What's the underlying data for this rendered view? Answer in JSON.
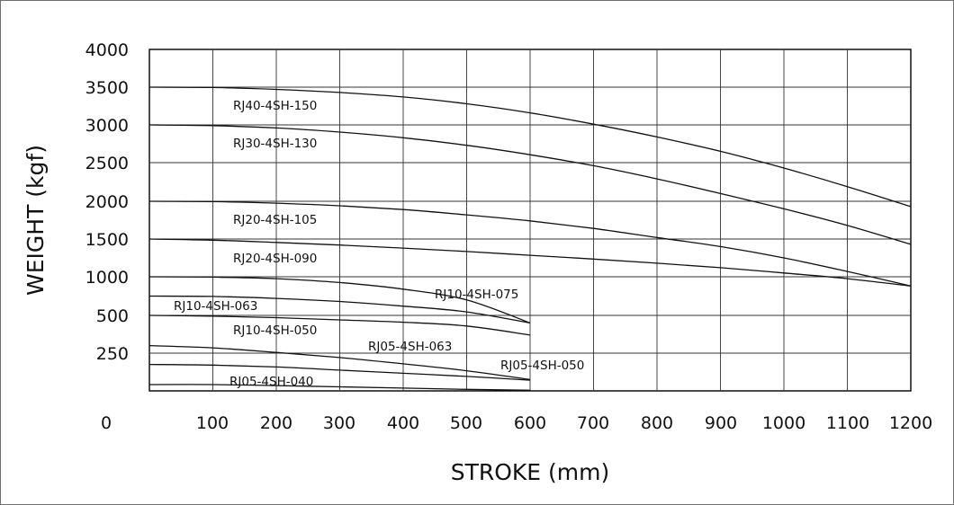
{
  "chart_data": {
    "type": "line",
    "xlabel": "STROKE (mm)",
    "ylabel": "WEIGHT (kgf)",
    "x_ticks": [
      "0",
      "100",
      "200",
      "300",
      "400",
      "500",
      "600",
      "700",
      "800",
      "900",
      "1000",
      "1100",
      "1200"
    ],
    "y_ticks": [
      "4000",
      "3500",
      "3000",
      "2500",
      "2000",
      "1500",
      "1000",
      "500",
      "250"
    ],
    "xlim": [
      0,
      1200
    ],
    "grid": true,
    "legend": "none",
    "series": [
      {
        "name": "RJ40-4SH-150",
        "x": [
          0,
          100,
          200,
          300,
          400,
          500,
          600,
          700,
          800,
          900,
          1000,
          1100,
          1200
        ],
        "y": [
          3500,
          3495,
          3470,
          3430,
          3370,
          3280,
          3160,
          3010,
          2840,
          2650,
          2430,
          2190,
          1930
        ]
      },
      {
        "name": "RJ30-4SH-130",
        "x": [
          0,
          100,
          200,
          300,
          400,
          500,
          600,
          700,
          800,
          900,
          1000,
          1100,
          1200
        ],
        "y": [
          3000,
          2990,
          2960,
          2905,
          2830,
          2730,
          2605,
          2460,
          2290,
          2100,
          1900,
          1680,
          1430
        ]
      },
      {
        "name": "RJ20-4SH-105",
        "x": [
          0,
          100,
          200,
          300,
          400,
          500,
          600,
          700,
          800,
          900,
          1000,
          1100,
          1200
        ],
        "y": [
          2000,
          1995,
          1975,
          1940,
          1890,
          1820,
          1740,
          1640,
          1520,
          1400,
          1250,
          1070,
          880
        ]
      },
      {
        "name": "RJ20-4SH-090",
        "x": [
          0,
          100,
          200,
          300,
          400,
          500,
          600,
          700,
          800,
          900,
          1000,
          1100,
          1200
        ],
        "y": [
          1500,
          1485,
          1455,
          1420,
          1380,
          1335,
          1285,
          1235,
          1180,
          1120,
          1050,
          975,
          880
        ]
      },
      {
        "name": "RJ10-4SH-075",
        "x": [
          0,
          100,
          200,
          300,
          400,
          500,
          600
        ],
        "y": [
          1000,
          995,
          975,
          925,
          840,
          700,
          450
        ]
      },
      {
        "name": "RJ10-4SH-063",
        "x": [
          0,
          100,
          200,
          300,
          400,
          500,
          600
        ],
        "y": [
          750,
          745,
          720,
          680,
          620,
          545,
          450
        ]
      },
      {
        "name": "RJ10-4SH-050",
        "x": [
          0,
          100,
          200,
          300,
          400,
          500,
          600
        ],
        "y": [
          500,
          495,
          485,
          470,
          455,
          430,
          370
        ]
      },
      {
        "name": "RJ05-4SH-063",
        "x": [
          0,
          100,
          200,
          300,
          400,
          500,
          600
        ],
        "y": [
          300,
          285,
          255,
          215,
          165,
          110,
          40
        ]
      },
      {
        "name": "RJ05-4SH-050",
        "x": [
          0,
          100,
          200,
          300,
          400,
          500,
          600
        ],
        "y": [
          160,
          155,
          140,
          115,
          90,
          65,
          35
        ]
      },
      {
        "name": "RJ05-4SH-040",
        "x": [
          0,
          100,
          200,
          300,
          400,
          500,
          600
        ],
        "y": [
          0,
          0,
          -8,
          -18,
          -28,
          -38,
          -45
        ]
      }
    ]
  }
}
